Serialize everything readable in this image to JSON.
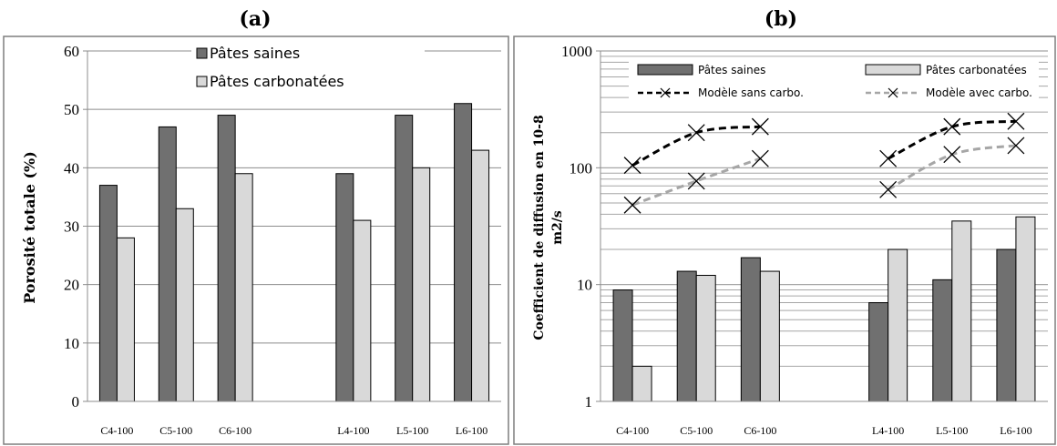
{
  "chart_data": [
    {
      "type": "bar",
      "panel_label": "(a)",
      "ylabel": "Porosité totale (%)",
      "ylim": [
        0,
        60
      ],
      "yticks": [
        0,
        10,
        20,
        30,
        40,
        50,
        60
      ],
      "grid": true,
      "legend_position": "top-center",
      "categories": [
        "C4-100",
        "C5-100",
        "C6-100",
        "",
        "L4-100",
        "L5-100",
        "L6-100"
      ],
      "series": [
        {
          "name": "Pâtes saines",
          "color": "#707070",
          "values": [
            37,
            47,
            49,
            null,
            39,
            49,
            51
          ]
        },
        {
          "name": "Pâtes carbonatées",
          "color": "#d9d9d9",
          "values": [
            28,
            33,
            39,
            null,
            31,
            40,
            43
          ]
        }
      ]
    },
    {
      "type": "bar",
      "panel_label": "(b)",
      "ylabel_line1": "Coefficient de diffusion en 10-8",
      "ylabel_line2": "m2/s",
      "yscale": "log",
      "ylim": [
        1,
        1000
      ],
      "yticks": [
        1,
        10,
        100,
        1000
      ],
      "grid": true,
      "legend_position": "top",
      "categories": [
        "C4-100",
        "C5-100",
        "C6-100",
        "",
        "L4-100",
        "L5-100",
        "L6-100"
      ],
      "series": [
        {
          "name": "Pâtes saines",
          "kind": "bar",
          "color": "#707070",
          "values": [
            9,
            13,
            17,
            null,
            7,
            11,
            20
          ]
        },
        {
          "name": "Pâtes carbonatées",
          "kind": "bar",
          "color": "#d9d9d9",
          "values": [
            2,
            12,
            13,
            null,
            20,
            35,
            38
          ]
        },
        {
          "name": "Modèle sans carbo.",
          "kind": "line",
          "color": "#000000",
          "values": [
            105,
            200,
            225,
            null,
            120,
            225,
            250
          ]
        },
        {
          "name": "Modèle avec carbo.",
          "kind": "line",
          "color": "#a6a6a6",
          "values": [
            48,
            77,
            120,
            null,
            65,
            130,
            155
          ]
        }
      ]
    }
  ]
}
